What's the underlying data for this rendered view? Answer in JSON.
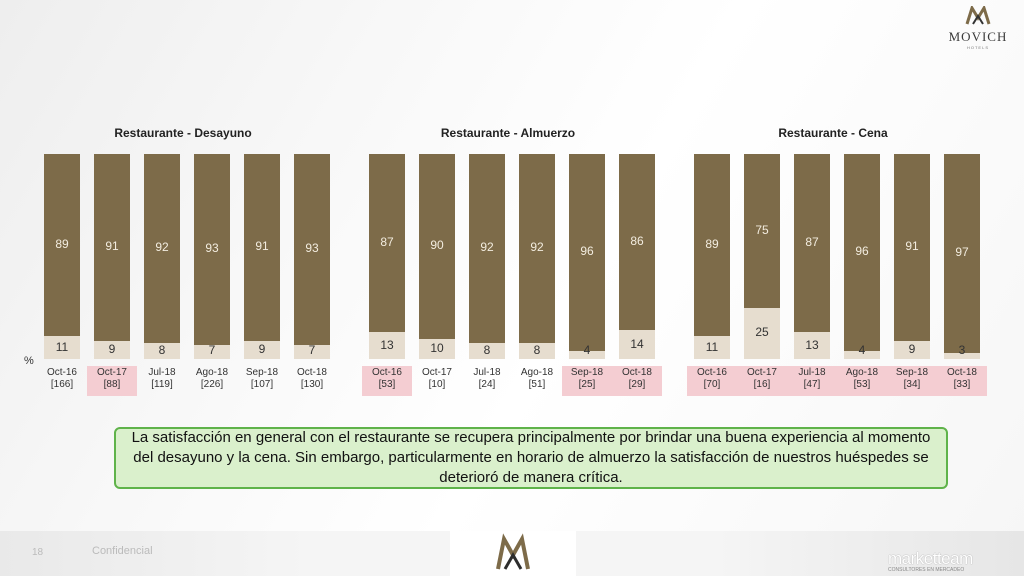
{
  "brand": {
    "logo_text": "MOVICH",
    "logo_sub": "HOTELS"
  },
  "pct_symbol": "%",
  "colors": {
    "bar_top": "#7d6b49",
    "bar_bottom": "#e6ddcf",
    "highlight": "#f4cdd2",
    "note_bg": "#daf0cc",
    "note_border": "#5fb34a"
  },
  "chart_data": [
    {
      "type": "bar",
      "stacked": true,
      "title": "Restaurante - Desayuno",
      "categories": [
        "Oct-16",
        "Oct-17",
        "Jul-18",
        "Ago-18",
        "Sep-18",
        "Oct-18"
      ],
      "bases": [
        "[166]",
        "[88]",
        "[119]",
        "[226]",
        "[107]",
        "[130]"
      ],
      "highlighted": [
        false,
        true,
        false,
        false,
        false,
        false
      ],
      "series": [
        {
          "values": [
            89,
            91,
            92,
            93,
            91,
            93
          ]
        },
        {
          "values": [
            11,
            9,
            8,
            7,
            9,
            7
          ]
        }
      ],
      "ylim": [
        0,
        100
      ]
    },
    {
      "type": "bar",
      "stacked": true,
      "title": "Restaurante - Almuerzo",
      "categories": [
        "Oct-16",
        "Oct-17",
        "Jul-18",
        "Ago-18",
        "Sep-18",
        "Oct-18"
      ],
      "bases": [
        "[53]",
        "[10]",
        "[24]",
        "[51]",
        "[25]",
        "[29]"
      ],
      "highlighted": [
        true,
        false,
        false,
        false,
        true,
        true
      ],
      "series": [
        {
          "values": [
            87,
            90,
            92,
            92,
            96,
            86
          ]
        },
        {
          "values": [
            13,
            10,
            8,
            8,
            4,
            14
          ]
        }
      ],
      "ylim": [
        0,
        100
      ]
    },
    {
      "type": "bar",
      "stacked": true,
      "title": "Restaurante - Cena",
      "categories": [
        "Oct-16",
        "Oct-17",
        "Jul-18",
        "Ago-18",
        "Sep-18",
        "Oct-18"
      ],
      "bases": [
        "[70]",
        "[16]",
        "[47]",
        "[53]",
        "[34]",
        "[33]"
      ],
      "highlighted": [
        true,
        true,
        true,
        true,
        true,
        true
      ],
      "series": [
        {
          "values": [
            89,
            75,
            87,
            96,
            91,
            97
          ]
        },
        {
          "values": [
            11,
            25,
            13,
            4,
            9,
            3
          ]
        }
      ],
      "ylim": [
        0,
        100
      ]
    }
  ],
  "note": "La satisfacción en general con el restaurante se recupera principalmente por brindar una buena experiencia al momento del desayuno y la cena. Sin embargo, particularmente en horario de almuerzo la satisfacción de nuestros huéspedes se deterioró de manera crítica.",
  "footer": {
    "page_number": "18",
    "confidential": "Confidencial",
    "brand": "marketteam",
    "brand_sub": "CONSULTORES EN MERCADEO"
  }
}
